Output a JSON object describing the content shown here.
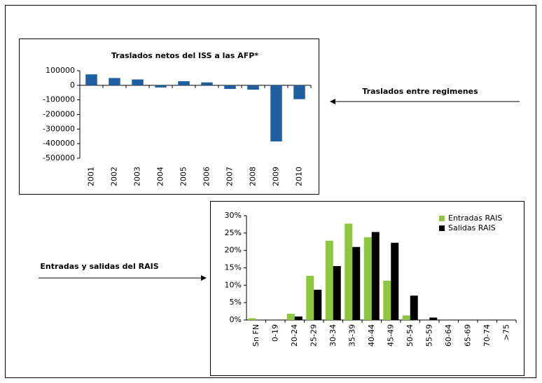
{
  "annotations": [
    "Traslados entre regimenes",
    "Entradas y salidas del RAIS"
  ],
  "chart_data": [
    {
      "type": "bar",
      "title": "Traslados netos del ISS a las AFP*",
      "categories": [
        "2001",
        "2002",
        "2003",
        "2004",
        "2005",
        "2006",
        "2007",
        "2008",
        "2009",
        "2010"
      ],
      "values": [
        75000,
        50000,
        40000,
        -15000,
        28000,
        20000,
        -25000,
        -30000,
        -385000,
        -95000
      ],
      "color": "#1f5fa0",
      "ylim": [
        -500000,
        100000
      ],
      "yticks": [
        -500000,
        -400000,
        -300000,
        -200000,
        -100000,
        0,
        100000
      ],
      "grid": false
    },
    {
      "type": "bar",
      "categories": [
        "Sn FN",
        "0-19",
        "20-24",
        "25-29",
        "30-34",
        "35-39",
        "40-44",
        "45-49",
        "50-54",
        "55-59",
        "60-64",
        "65-69",
        "70-74",
        ">75"
      ],
      "series": [
        {
          "name": "Entradas RAIS",
          "color": "#8dc63f",
          "values": [
            0.5,
            0,
            1.8,
            12.7,
            22.8,
            27.7,
            23.8,
            11.3,
            1.3,
            0,
            0,
            0,
            0,
            0
          ]
        },
        {
          "name": "Salidas RAIS",
          "color": "#000000",
          "values": [
            0,
            0,
            1,
            8.7,
            15.5,
            21,
            25.3,
            22.2,
            7,
            0.7,
            0,
            0,
            0,
            0
          ]
        }
      ],
      "ylim": [
        0,
        30
      ],
      "yticks": [
        {
          "value": 0,
          "label": "0%"
        },
        {
          "value": 5,
          "label": "5%"
        },
        {
          "value": 10,
          "label": "10%"
        },
        {
          "value": 15,
          "label": "15%"
        },
        {
          "value": 20,
          "label": "20%"
        },
        {
          "value": 25,
          "label": "25%"
        },
        {
          "value": 30,
          "label": "30%"
        }
      ],
      "grid": false,
      "legend": "top-right"
    }
  ]
}
